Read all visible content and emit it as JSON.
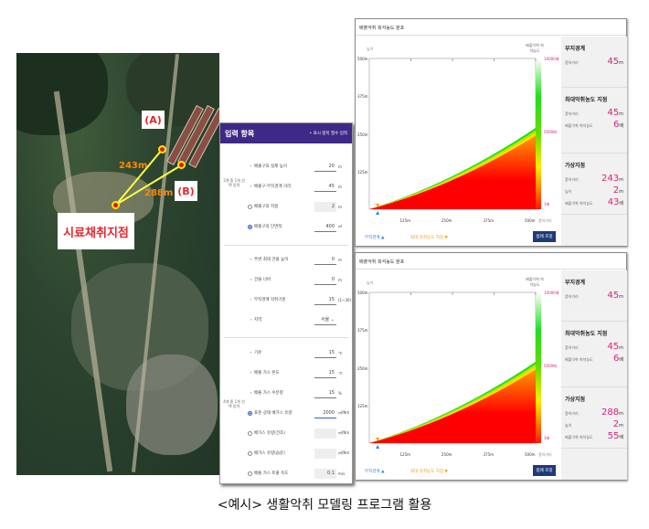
{
  "map": {
    "label_a": "(A)",
    "label_b": "(B)",
    "sample_point": "시료채취지점",
    "dist_a": "243m",
    "dist_b": "288m"
  },
  "input": {
    "title": "입력 항목",
    "note": "• 표시 항목 필수 입력",
    "group1": "2개 중 1개 선택 입력",
    "group2": "4개 중 1개 선택 입력",
    "rows": [
      {
        "label": "배출구의 실제 높이",
        "value": "20",
        "unit": "m",
        "kind": "arrow"
      },
      {
        "label": "배출구-부지경계 거리",
        "value": "45",
        "unit": "m",
        "kind": "arrow"
      },
      {
        "label": "배출구의 지름",
        "value": "2",
        "unit": "m",
        "kind": "radio",
        "disabled": true
      },
      {
        "label": "배출구의 단면적",
        "value": "400",
        "unit": "㎡",
        "kind": "radio-on"
      },
      {
        "label": "주변 최대 건물 높이",
        "value": "0",
        "unit": "m",
        "kind": "arrow"
      },
      {
        "label": "건물 너비",
        "value": "0",
        "unit": "m",
        "kind": "arrow"
      },
      {
        "label": "부지경계 악취기준",
        "value": "15",
        "unit": "(1~30)",
        "kind": "arrow"
      },
      {
        "label": "지역",
        "value": "서울 ⌄",
        "unit": "",
        "kind": "arrow"
      },
      {
        "label": "기온",
        "value": "15",
        "unit": "℃",
        "kind": "arrow"
      },
      {
        "label": "배출 가스 온도",
        "value": "15",
        "unit": "℃",
        "kind": "arrow"
      },
      {
        "label": "배출 가스 수분량",
        "value": "15",
        "unit": "%",
        "kind": "arrow"
      },
      {
        "label": "표준 상태 배가스 유량",
        "value": "2000",
        "unit": "㎥/Nm",
        "kind": "radio-on"
      },
      {
        "label": "배가스 유량(건조)",
        "value": "",
        "unit": "㎥/Nm",
        "kind": "radio",
        "disabled": true
      },
      {
        "label": "배가스 유량(습윤)",
        "value": "",
        "unit": "㎥/Nm",
        "kind": "radio",
        "disabled": true
      },
      {
        "label": "배출 가스 토출 속도",
        "value": "0.1",
        "unit": "m/s",
        "kind": "radio",
        "disabled": true
      }
    ]
  },
  "panels": [
    {
      "title": "배출악취 희석농도 분포",
      "ylabel": "높이",
      "xlabel": "풍하거리",
      "colorbar_label": "배출악취 희석농도",
      "yticks": [
        "500m",
        "375m",
        "250m",
        "125m"
      ],
      "xticks": [
        "125m",
        "250m",
        "375m",
        "500m"
      ],
      "cbar_ticks": [
        "10000배",
        "5000배",
        "1배"
      ],
      "s1": {
        "title": "부지경계",
        "k1": "풍하거리",
        "v1": "45",
        "u1": "m"
      },
      "s2": {
        "title": "최대악취농도 지점",
        "k1": "풍하거리",
        "v1": "45",
        "u1": "m",
        "k2": "배출악취 희석농도",
        "v2": "6",
        "u2": "배"
      },
      "s3": {
        "title": "가상지점",
        "k1": "풍하거리",
        "v1": "243",
        "u1": "m",
        "k2": "높이",
        "v2": "2",
        "u2": "m",
        "k3": "배출악취 희석농도",
        "v3": "43",
        "u3": "배"
      },
      "legend1": "부지경계 ▲",
      "legend2": "최대 악취농도 지점 ▼",
      "button": "범례 조정"
    },
    {
      "title": "배출악취 희석농도 분포",
      "ylabel": "높이",
      "xlabel": "풍하거리",
      "colorbar_label": "배출악취 희석농도",
      "yticks": [
        "500m",
        "375m",
        "250m",
        "125m"
      ],
      "xticks": [
        "125m",
        "250m",
        "375m",
        "500m"
      ],
      "cbar_ticks": [
        "10000배",
        "5000배",
        "1배"
      ],
      "s1": {
        "title": "부지경계",
        "k1": "풍하거리",
        "v1": "45",
        "u1": "m"
      },
      "s2": {
        "title": "최대악취농도 지점",
        "k1": "풍하거리",
        "v1": "45",
        "u1": "m",
        "k2": "배출악취 희석농도",
        "v2": "6",
        "u2": "배"
      },
      "s3": {
        "title": "가상지점",
        "k1": "풍하거리",
        "v1": "288",
        "u1": "m",
        "k2": "높이",
        "v2": "2",
        "u2": "m",
        "k3": "배출악취 희석농도",
        "v3": "55",
        "u3": "배"
      },
      "legend1": "부지경계 ▲",
      "legend2": "최대 악취농도 지점 ▼",
      "button": "범례 조정"
    }
  ],
  "colors": {
    "header": "#3e2a86",
    "value": "#d6247a",
    "button": "#1f3a7a"
  },
  "caption": "<예시> 생활악취 모델링 프로그램 활용"
}
